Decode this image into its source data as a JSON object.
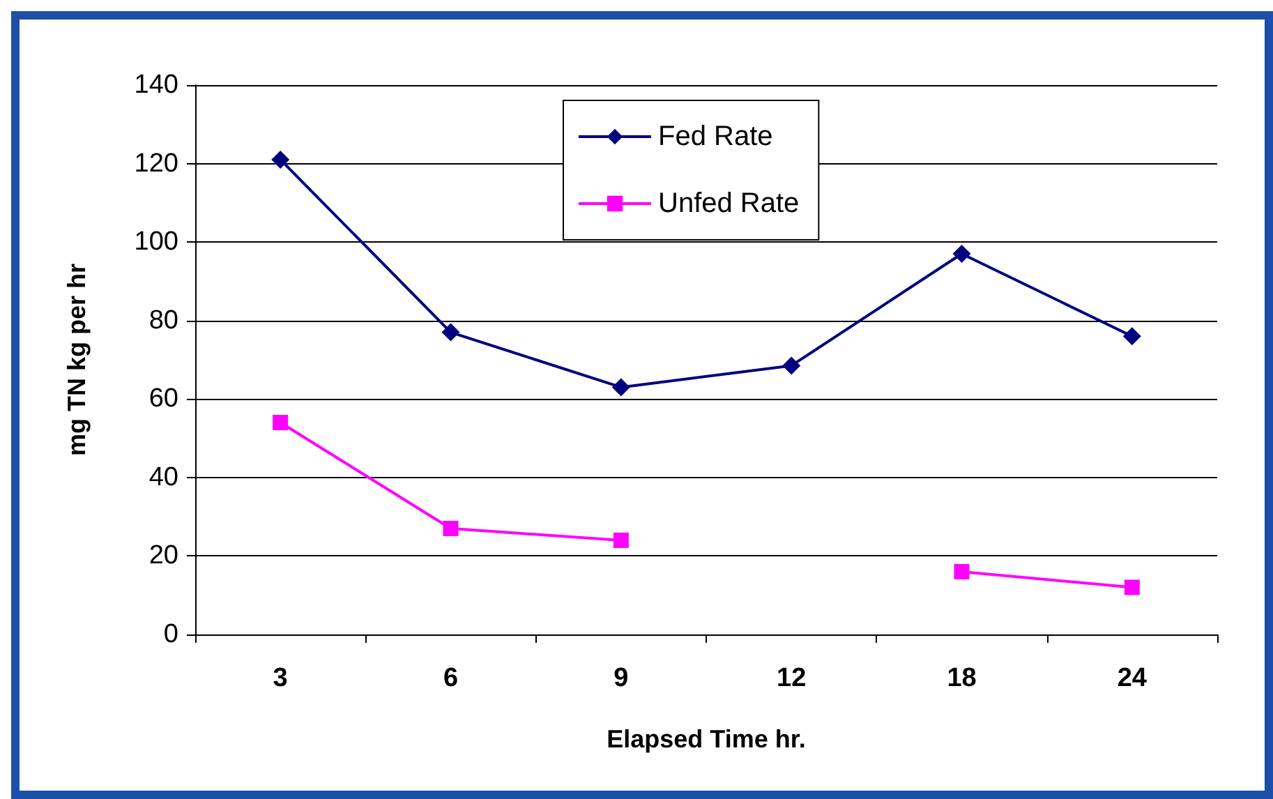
{
  "chart_data": {
    "type": "line",
    "xlabel": "Elapsed Time hr.",
    "ylabel": "mg TN kg per hr",
    "categories": [
      "3",
      "6",
      "9",
      "12",
      "18",
      "24"
    ],
    "series": [
      {
        "name": "Fed Rate",
        "color": "#000080",
        "marker": "diamond",
        "values": [
          121,
          77,
          63,
          68.5,
          97,
          76
        ]
      },
      {
        "name": "Unfed Rate",
        "color": "#ff00ff",
        "marker": "square",
        "values": [
          54,
          27,
          24,
          null,
          16,
          12
        ]
      }
    ],
    "ylim": [
      0,
      140
    ],
    "yticks": [
      0,
      20,
      40,
      60,
      80,
      100,
      120,
      140
    ],
    "grid": "y",
    "legend": "top"
  }
}
